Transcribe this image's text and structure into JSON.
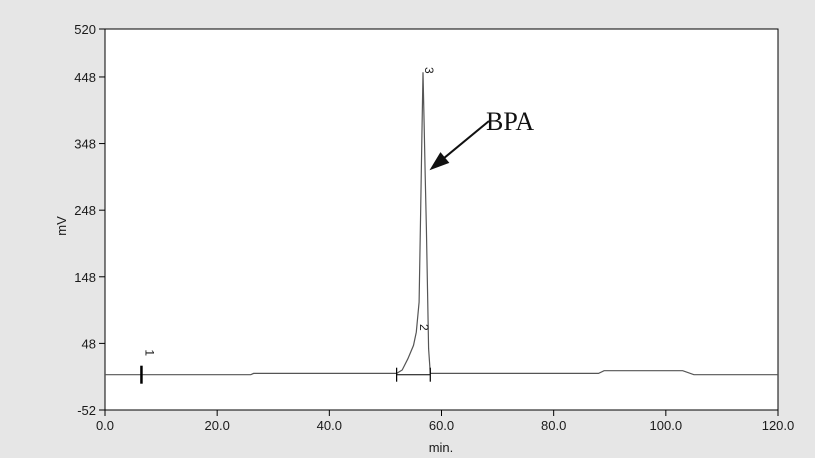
{
  "chart_data": {
    "type": "line",
    "title": "",
    "xlabel": "min.",
    "ylabel": "mV",
    "xlim": [
      0,
      120
    ],
    "ylim": [
      -52,
      520
    ],
    "x_ticks": [
      0,
      20,
      40,
      60,
      80,
      100,
      120
    ],
    "x_tick_labels": [
      "0.0",
      "20.0",
      "40.0",
      "60.0",
      "80.0",
      "100.0",
      "120.0"
    ],
    "y_ticks": [
      -52,
      48,
      148,
      248,
      348,
      448,
      520
    ],
    "y_tick_labels": [
      "-52",
      "48",
      "148",
      "248",
      "348",
      "448",
      "520"
    ],
    "grid": false,
    "series": [
      {
        "x": [
          0,
          26,
          26.5,
          52,
          53,
          54,
          55,
          55.5,
          56,
          56.3,
          56.5,
          56.7,
          56.9,
          57.1,
          57.3,
          57.5,
          57.7,
          58,
          60,
          88,
          89,
          103,
          105,
          120
        ],
        "y": [
          1,
          1,
          3,
          3,
          8,
          25,
          45,
          65,
          110,
          250,
          360,
          455,
          380,
          300,
          220,
          130,
          40,
          3,
          3,
          3,
          7,
          7,
          1,
          1
        ]
      }
    ],
    "peaks": [
      {
        "label": "1",
        "x": 6.5
      },
      {
        "label": "2",
        "x": 55.8,
        "y": 72
      },
      {
        "label": "3",
        "x": 56.7,
        "y": 458
      }
    ],
    "integration_bounds": [
      52,
      58
    ],
    "annotation": {
      "text": "BPA",
      "points_to_x": 57.5,
      "points_to_y": 305
    }
  }
}
